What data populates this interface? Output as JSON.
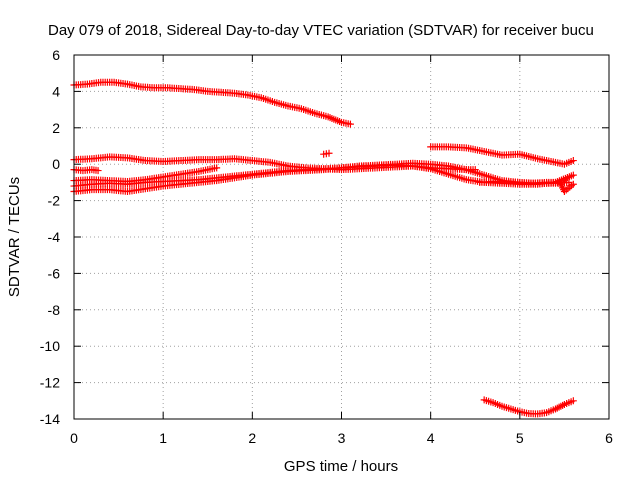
{
  "chart_data": {
    "type": "scatter",
    "title": "Day 079 of 2018, Sidereal Day-to-day VTEC variation (SDTVAR) for receiver bucu",
    "xlabel": "GPS time / hours",
    "ylabel": "SDTVAR / TECUs",
    "xlim": [
      0,
      6
    ],
    "ylim": [
      -14,
      6
    ],
    "xticks": [
      0,
      1,
      2,
      3,
      4,
      5,
      6
    ],
    "yticks": [
      -14,
      -12,
      -10,
      -8,
      -6,
      -4,
      -2,
      0,
      2,
      4,
      6
    ],
    "grid": true,
    "marker": "plus",
    "color": "#ff0000",
    "series": [
      {
        "values": [
          [
            0.0,
            4.35
          ],
          [
            0.15,
            4.4
          ],
          [
            0.3,
            4.5
          ],
          [
            0.45,
            4.5
          ],
          [
            0.6,
            4.4
          ],
          [
            0.75,
            4.25
          ],
          [
            0.9,
            4.2
          ],
          [
            1.05,
            4.2
          ],
          [
            1.2,
            4.15
          ],
          [
            1.35,
            4.1
          ],
          [
            1.5,
            4.0
          ],
          [
            1.65,
            3.95
          ],
          [
            1.8,
            3.9
          ],
          [
            1.95,
            3.8
          ],
          [
            2.1,
            3.65
          ],
          [
            2.25,
            3.4
          ],
          [
            2.4,
            3.2
          ],
          [
            2.55,
            3.05
          ],
          [
            2.7,
            2.8
          ],
          [
            2.85,
            2.6
          ],
          [
            3.0,
            2.3
          ],
          [
            3.1,
            2.2
          ]
        ]
      },
      {
        "values": [
          [
            2.8,
            0.55
          ],
          [
            2.86,
            0.6
          ]
        ]
      },
      {
        "values": [
          [
            0.0,
            0.25
          ],
          [
            0.2,
            0.3
          ],
          [
            0.4,
            0.4
          ],
          [
            0.6,
            0.35
          ],
          [
            0.8,
            0.2
          ],
          [
            1.0,
            0.15
          ],
          [
            1.2,
            0.2
          ],
          [
            1.4,
            0.25
          ],
          [
            1.6,
            0.25
          ],
          [
            1.8,
            0.3
          ],
          [
            2.0,
            0.2
          ],
          [
            2.2,
            0.1
          ],
          [
            2.4,
            -0.1
          ],
          [
            2.6,
            -0.2
          ],
          [
            2.8,
            -0.25
          ],
          [
            3.0,
            -0.3
          ],
          [
            3.2,
            -0.25
          ],
          [
            3.4,
            -0.2
          ],
          [
            3.6,
            -0.15
          ],
          [
            3.8,
            -0.1
          ],
          [
            4.0,
            -0.25
          ],
          [
            4.2,
            -0.55
          ],
          [
            4.4,
            -0.85
          ],
          [
            4.6,
            -1.0
          ],
          [
            4.8,
            -1.05
          ],
          [
            5.0,
            -1.1
          ],
          [
            5.2,
            -1.1
          ],
          [
            5.4,
            -1.0
          ],
          [
            5.6,
            -0.6
          ]
        ]
      },
      {
        "values": [
          [
            0.0,
            -0.3
          ],
          [
            0.1,
            -0.35
          ],
          [
            0.2,
            -0.3
          ],
          [
            0.27,
            -0.35
          ]
        ]
      },
      {
        "values": [
          [
            0.0,
            -0.9
          ],
          [
            0.2,
            -0.85
          ],
          [
            0.4,
            -0.9
          ],
          [
            0.6,
            -0.95
          ],
          [
            0.8,
            -0.85
          ],
          [
            1.0,
            -0.7
          ],
          [
            1.2,
            -0.55
          ],
          [
            1.4,
            -0.4
          ],
          [
            1.6,
            -0.2
          ]
        ]
      },
      {
        "values": [
          [
            0.0,
            -1.2
          ],
          [
            0.2,
            -1.1
          ],
          [
            0.4,
            -1.05
          ],
          [
            0.6,
            -1.1
          ],
          [
            0.8,
            -1.0
          ],
          [
            1.0,
            -0.95
          ],
          [
            1.2,
            -0.9
          ],
          [
            1.4,
            -0.85
          ],
          [
            1.6,
            -0.75
          ],
          [
            1.8,
            -0.65
          ],
          [
            2.0,
            -0.55
          ],
          [
            2.2,
            -0.45
          ],
          [
            2.4,
            -0.35
          ],
          [
            2.6,
            -0.3
          ],
          [
            2.8,
            -0.25
          ],
          [
            3.0,
            -0.2
          ],
          [
            3.2,
            -0.1
          ],
          [
            3.4,
            -0.05
          ],
          [
            3.6,
            0.0
          ],
          [
            3.8,
            0.05
          ],
          [
            4.0,
            0.0
          ],
          [
            4.2,
            -0.1
          ],
          [
            4.4,
            -0.3
          ],
          [
            4.6,
            -0.6
          ],
          [
            4.8,
            -0.9
          ],
          [
            5.0,
            -1.0
          ],
          [
            5.2,
            -1.05
          ],
          [
            5.4,
            -1.05
          ],
          [
            5.55,
            -1.0
          ]
        ]
      },
      {
        "values": [
          [
            0.0,
            -1.5
          ],
          [
            0.2,
            -1.4
          ],
          [
            0.4,
            -1.4
          ],
          [
            0.6,
            -1.5
          ],
          [
            0.8,
            -1.35
          ],
          [
            1.0,
            -1.2
          ],
          [
            1.2,
            -1.1
          ],
          [
            1.4,
            -1.0
          ],
          [
            1.6,
            -0.9
          ],
          [
            1.8,
            -0.75
          ],
          [
            2.0,
            -0.6
          ],
          [
            2.2,
            -0.5
          ],
          [
            2.4,
            -0.4
          ],
          [
            2.6,
            -0.35
          ],
          [
            2.8,
            -0.3
          ],
          [
            3.0,
            -0.2
          ],
          [
            3.2,
            -0.15
          ],
          [
            3.4,
            -0.1
          ],
          [
            3.6,
            -0.05
          ],
          [
            3.8,
            -0.1
          ],
          [
            4.0,
            -0.2
          ],
          [
            4.2,
            -0.25
          ],
          [
            4.4,
            -0.3
          ],
          [
            4.5,
            -0.3
          ]
        ]
      },
      {
        "values": [
          [
            4.0,
            0.95
          ],
          [
            4.2,
            0.95
          ],
          [
            4.4,
            0.9
          ],
          [
            4.6,
            0.7
          ],
          [
            4.8,
            0.5
          ],
          [
            5.0,
            0.55
          ],
          [
            5.2,
            0.3
          ],
          [
            5.4,
            0.1
          ],
          [
            5.5,
            0.0
          ],
          [
            5.6,
            0.2
          ]
        ]
      },
      {
        "values": [
          [
            4.55,
            -1.0
          ],
          [
            4.7,
            -0.95
          ],
          [
            4.9,
            -1.0
          ],
          [
            5.1,
            -1.05
          ],
          [
            5.3,
            -1.0
          ],
          [
            5.45,
            -1.0
          ],
          [
            5.5,
            -1.5
          ],
          [
            5.6,
            -1.1
          ]
        ]
      },
      {
        "values": [
          [
            4.6,
            -12.95
          ],
          [
            4.7,
            -13.1
          ],
          [
            4.8,
            -13.3
          ],
          [
            4.9,
            -13.45
          ],
          [
            5.0,
            -13.6
          ],
          [
            5.1,
            -13.7
          ],
          [
            5.2,
            -13.72
          ],
          [
            5.3,
            -13.65
          ],
          [
            5.4,
            -13.45
          ],
          [
            5.5,
            -13.2
          ],
          [
            5.6,
            -13.0
          ]
        ]
      }
    ]
  }
}
